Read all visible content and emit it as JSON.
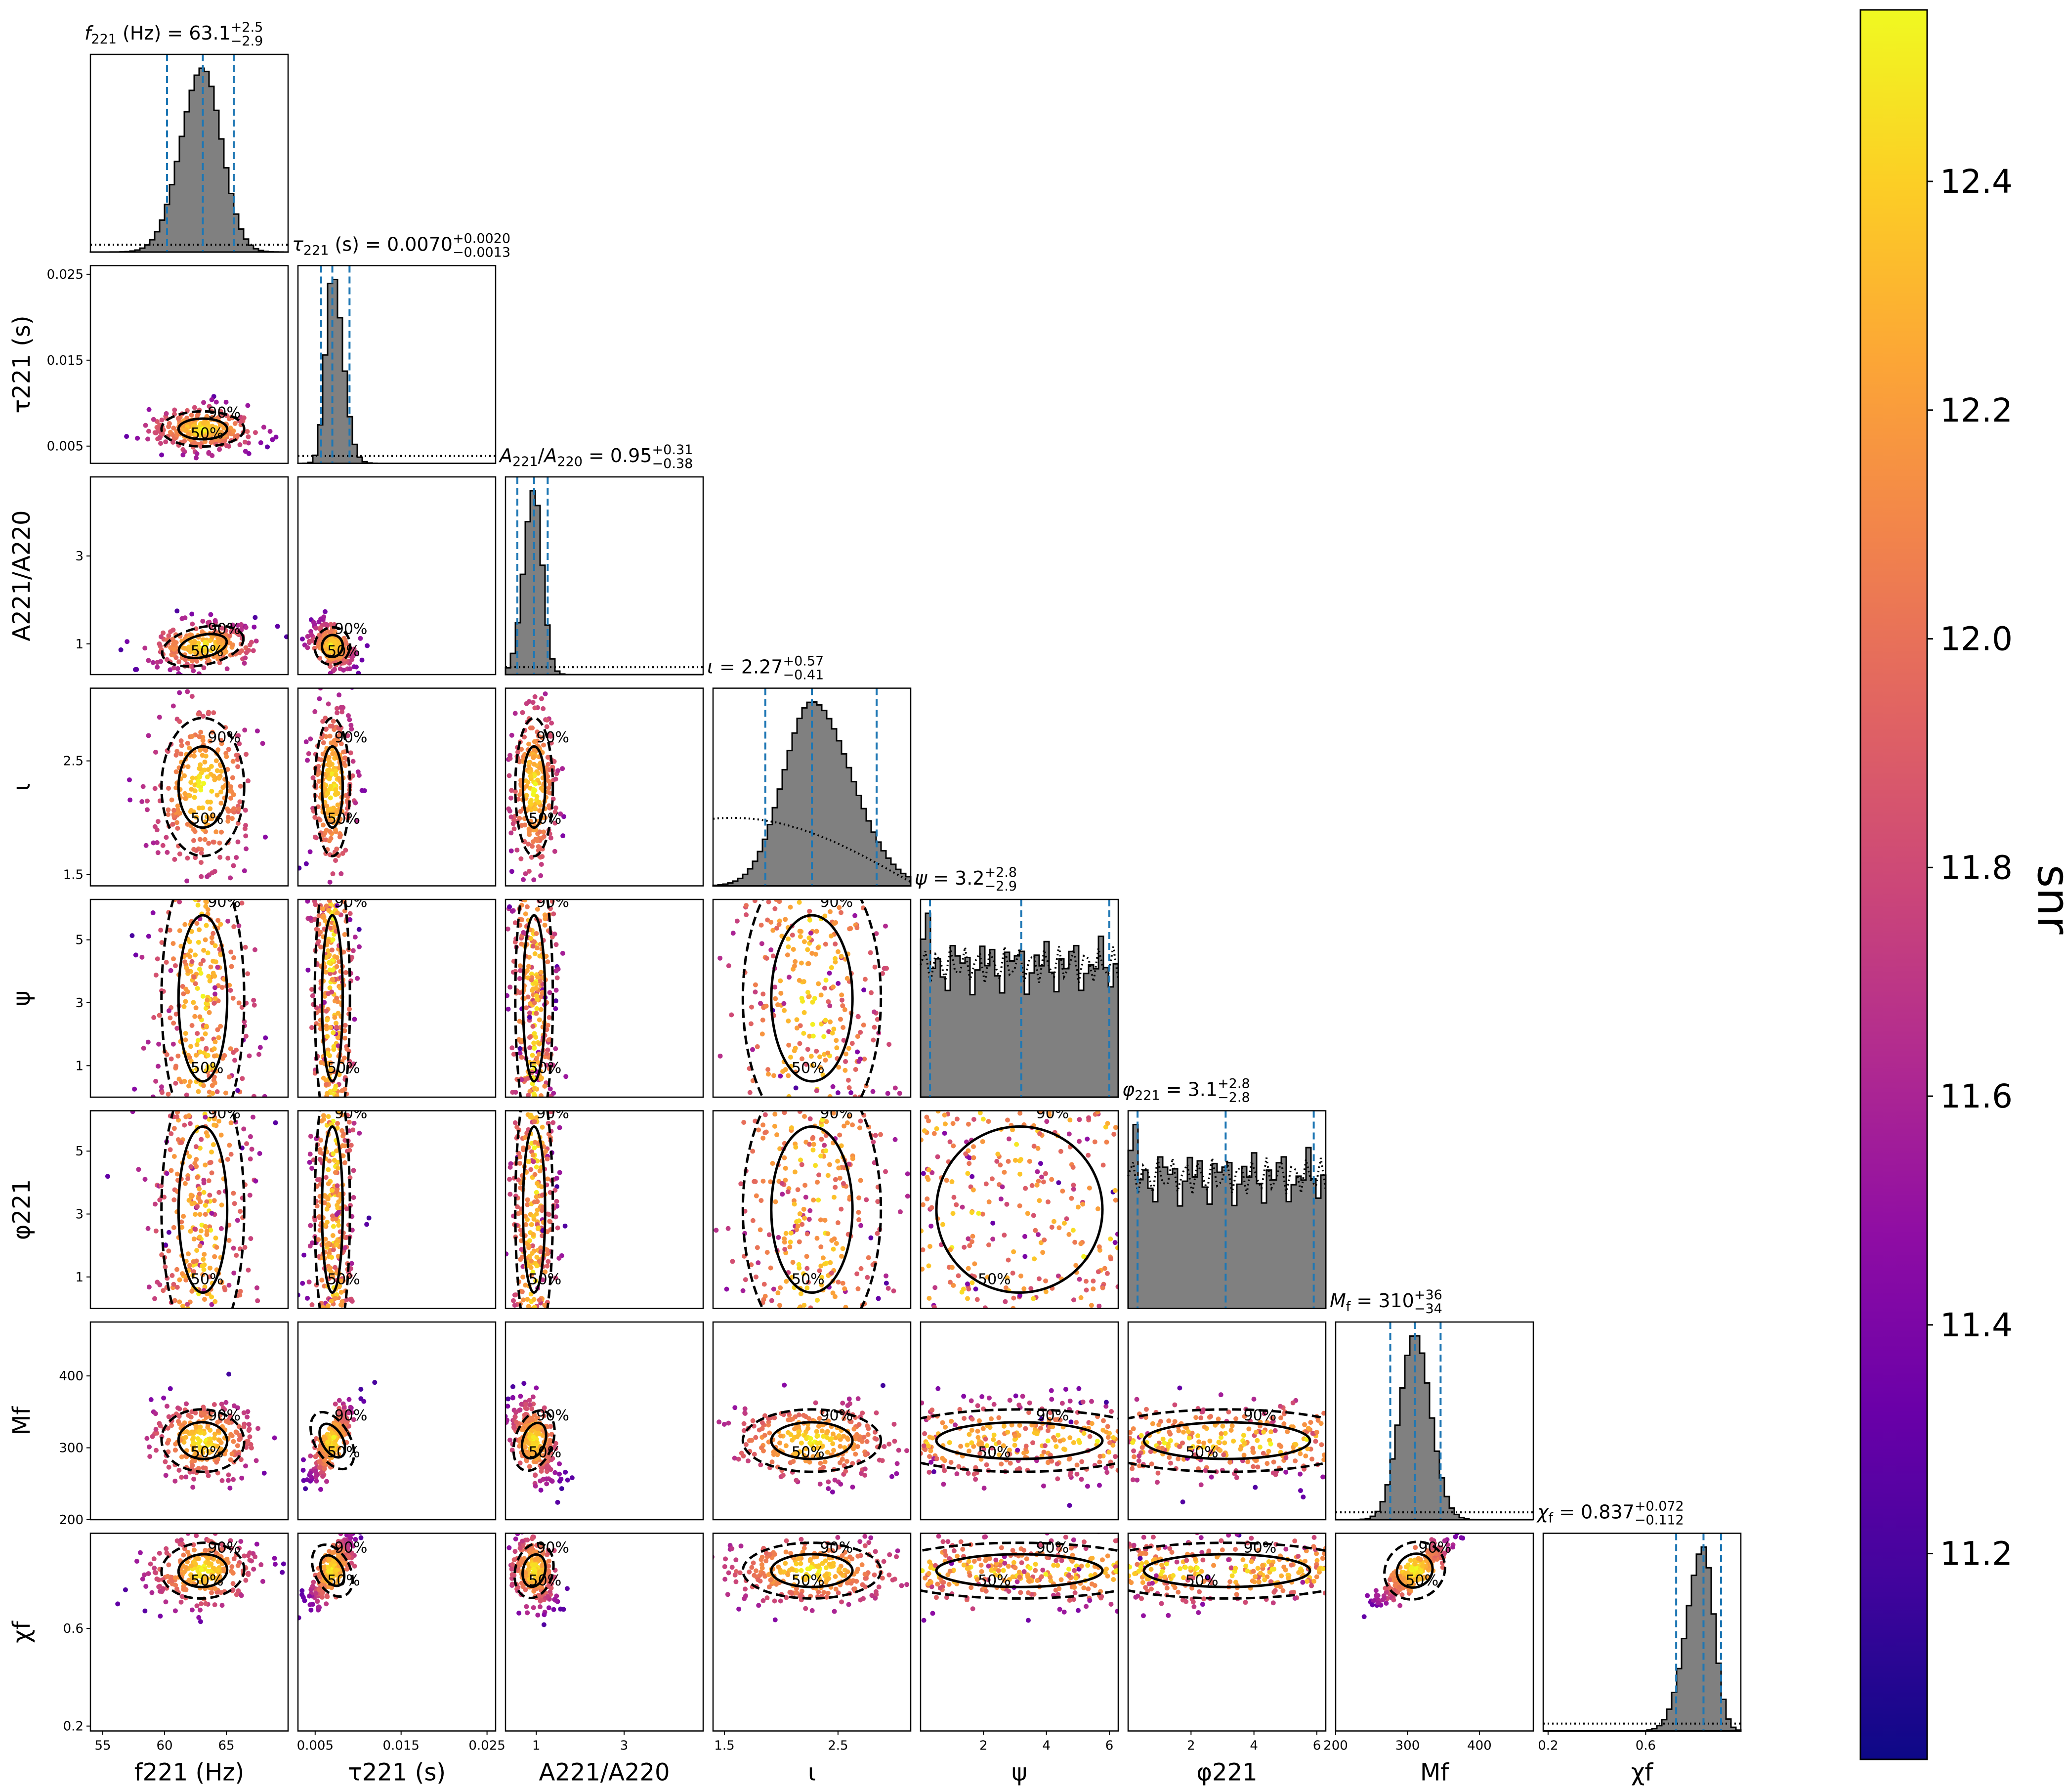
{
  "chart_data": {
    "type": "corner",
    "params": [
      {
        "key": "f221",
        "xlabel": "f221 (Hz)",
        "lo": 54,
        "hi": 70,
        "ticks": [
          55,
          60,
          65
        ],
        "median": 63.1,
        "plus": 2.5,
        "minus": 2.9,
        "title": {
          "sym": "f",
          "sub": "221",
          "unit": " (Hz) = ",
          "val": "63.1",
          "sup": "+2.5",
          "inf": "−2.9"
        },
        "prior": "flat"
      },
      {
        "key": "tau221",
        "xlabel": "τ221 (s)",
        "lo": 0.003,
        "hi": 0.026,
        "ticks": [
          0.005,
          0.015,
          0.025
        ],
        "median": 0.007,
        "plus": 0.002,
        "minus": 0.0013,
        "title": {
          "sym": "τ",
          "sub": "221",
          "unit": " (s) = ",
          "val": "0.0070",
          "sup": "+0.0020",
          "inf": "−0.0013"
        },
        "prior": "flat"
      },
      {
        "key": "amp",
        "xlabel": "A221/A220",
        "lo": 0.3,
        "hi": 4.8,
        "ticks": [
          1,
          3
        ],
        "median": 0.95,
        "plus": 0.31,
        "minus": 0.38,
        "title": {
          "sym": "A",
          "sub": "221",
          "unit": "",
          "val": "0.95",
          "sup": "+0.31",
          "inf": "−0.38",
          "sym2": "A",
          "sub2": "220"
        },
        "prior": "flat"
      },
      {
        "key": "iota",
        "xlabel": "ι",
        "lo": 1.4,
        "hi": 3.14,
        "ticks": [
          1.5,
          2.5
        ],
        "median": 2.27,
        "plus": 0.57,
        "minus": 0.41,
        "title": {
          "sym": "ι",
          "sub": "",
          "unit": " = ",
          "val": "2.27",
          "sup": "+0.57",
          "inf": "−0.41"
        },
        "prior": "sine"
      },
      {
        "key": "psi",
        "xlabel": "ψ",
        "lo": 0,
        "hi": 6.283,
        "ticks": [
          2,
          4,
          6
        ],
        "median": 3.2,
        "plus": 2.8,
        "minus": 2.9,
        "title": {
          "sym": "ψ",
          "sub": "",
          "unit": " = ",
          "val": "3.2",
          "sup": "+2.8",
          "inf": "−2.9"
        },
        "prior": "flat"
      },
      {
        "key": "phi221",
        "xlabel": "φ221",
        "lo": 0,
        "hi": 6.283,
        "ticks": [
          2,
          4,
          6
        ],
        "median": 3.1,
        "plus": 2.8,
        "minus": 2.8,
        "title": {
          "sym": "φ",
          "sub": "221",
          "unit": " = ",
          "val": "3.1",
          "sup": "+2.8",
          "inf": "−2.8"
        },
        "prior": "flat"
      },
      {
        "key": "mf",
        "xlabel": "Mf",
        "lo": 200,
        "hi": 475,
        "ticks": [
          200,
          300,
          400
        ],
        "median": 310,
        "plus": 36,
        "minus": 34,
        "title": {
          "sym": "M",
          "sub": "f",
          "unit": " = ",
          "val": "310",
          "sup": "+36",
          "inf": "−34"
        },
        "prior": "flat"
      },
      {
        "key": "chif",
        "xlabel": "χf",
        "lo": 0.18,
        "hi": 0.99,
        "ticks": [
          0.2,
          0.6
        ],
        "median": 0.837,
        "plus": 0.072,
        "minus": 0.112,
        "title": {
          "sym": "χ",
          "sub": "f",
          "unit": " = ",
          "val": "0.837",
          "sup": "+0.072",
          "inf": "−0.112"
        },
        "prior": "flat"
      }
    ],
    "ytick_labels": {
      "tau221": [
        0.005,
        0.015,
        0.025
      ],
      "amp": [
        1,
        3
      ],
      "iota": [
        1.5,
        2.5
      ],
      "psi": [
        1,
        3,
        5
      ],
      "phi221": [
        1,
        3,
        5
      ],
      "mf": [
        200,
        300,
        400
      ],
      "chif": [
        0.2,
        0.6
      ]
    },
    "contour_labels": [
      "50%",
      "90%"
    ],
    "colorbar": {
      "label": "snr",
      "min": 11.02,
      "max": 12.55,
      "ticks": [
        11.2,
        11.4,
        11.6,
        11.8,
        12.0,
        12.2,
        12.4
      ],
      "colormap": "plasma"
    },
    "colors": {
      "histogram_fill": "#808080",
      "quantile_lines": "#1f77b4",
      "contours": "#000000"
    }
  }
}
